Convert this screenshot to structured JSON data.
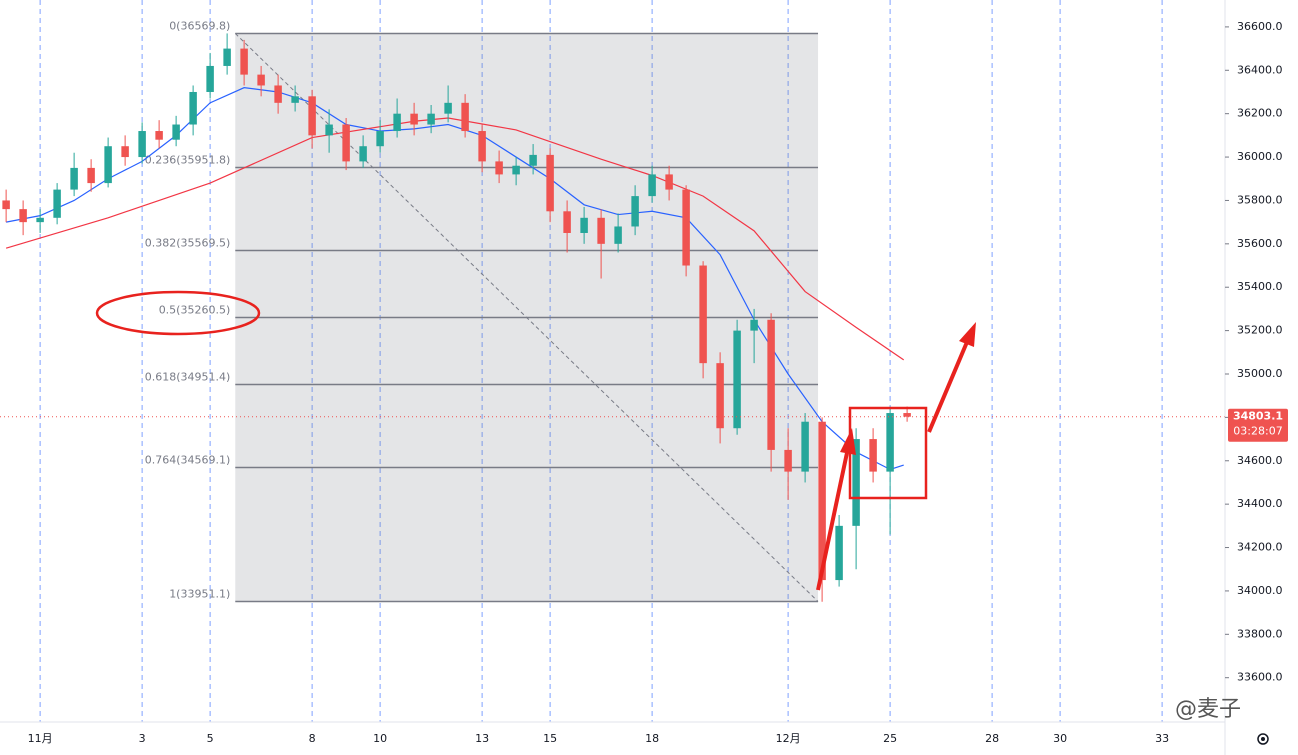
{
  "chart_data": {
    "type": "candlestick",
    "xlim": [
      -1.18,
      34.85
    ],
    "xticks": [
      {
        "value": 0,
        "label": "11月"
      },
      3,
      5,
      8,
      10,
      13,
      15,
      18,
      {
        "value": 22,
        "label": "12月"
      },
      25,
      28,
      30,
      33
    ],
    "ylim": [
      33405,
      36724
    ],
    "yticks": [
      {
        "value": 33600,
        "label": "33600.0"
      },
      {
        "value": 33800,
        "label": "33800.0"
      },
      {
        "value": 34000,
        "label": "34000.0"
      },
      {
        "value": 34200,
        "label": "34200.0"
      },
      {
        "value": 34400,
        "label": "34400.0"
      },
      {
        "value": 34600,
        "label": "34600.0"
      },
      {
        "value": 34800,
        "label": "34800.0"
      },
      {
        "value": 35000,
        "label": "35000.0"
      },
      {
        "value": 35200,
        "label": "35200.0"
      },
      {
        "value": 35400,
        "label": "35400.0"
      },
      {
        "value": 35600,
        "label": "35600.0"
      },
      {
        "value": 35800,
        "label": "35800.0"
      },
      {
        "value": 36000,
        "label": "36000.0"
      },
      {
        "value": 36200,
        "label": "36200.0"
      },
      {
        "value": 36400,
        "label": "36400.0"
      },
      {
        "value": 36600,
        "label": "36600.0"
      }
    ],
    "up_color": "#26a69a",
    "down_color": "#ef5350",
    "candles": {
      "x": [
        -1,
        -0.5,
        0,
        0.5,
        1,
        1.5,
        2,
        2.5,
        3,
        3.5,
        4,
        4.5,
        5,
        5.5,
        6,
        6.5,
        7,
        7.5,
        8,
        8.5,
        9,
        9.5,
        10,
        10.5,
        11,
        11.5,
        12,
        12.5,
        13,
        13.5,
        14,
        14.5,
        15,
        15.5,
        16,
        16.5,
        17,
        17.5,
        18,
        18.5,
        19,
        19.5,
        20,
        20.5,
        21,
        21.5,
        22,
        22.5,
        23,
        23.5,
        24,
        24.5,
        25,
        25.5
      ],
      "open": [
        35800,
        35760,
        35700,
        35720,
        35850,
        35950,
        35880,
        36050,
        36000,
        36120,
        36080,
        36150,
        36300,
        36420,
        36500,
        36380,
        36330,
        36250,
        36280,
        36100,
        36150,
        35980,
        36050,
        36120,
        36200,
        36150,
        36200,
        36250,
        36120,
        35980,
        35920,
        35960,
        36010,
        35750,
        35650,
        35720,
        35600,
        35680,
        35820,
        35920,
        35850,
        35500,
        35050,
        34750,
        35200,
        35250,
        34650,
        34550,
        34780,
        34050,
        34300,
        34700,
        34550,
        34820
      ],
      "high": [
        35850,
        35800,
        35760,
        35880,
        36020,
        35990,
        36090,
        36100,
        36160,
        36170,
        36190,
        36330,
        36480,
        36570,
        36540,
        36420,
        36380,
        36330,
        36310,
        36220,
        36180,
        36100,
        36170,
        36270,
        36250,
        36240,
        36330,
        36290,
        36150,
        36030,
        36000,
        36060,
        36040,
        35800,
        35770,
        35760,
        35740,
        35870,
        35960,
        35960,
        35870,
        35520,
        35100,
        35250,
        35300,
        35280,
        34750,
        34820,
        34800,
        34350,
        34750,
        34750,
        34850,
        34850
      ],
      "low": [
        35700,
        35640,
        35650,
        35690,
        35820,
        35840,
        35860,
        35960,
        35970,
        36040,
        36050,
        36100,
        36270,
        36380,
        36330,
        36280,
        36200,
        36210,
        36040,
        36020,
        35940,
        35950,
        36020,
        36090,
        36100,
        36110,
        36160,
        36090,
        35930,
        35880,
        35870,
        35920,
        35700,
        35560,
        35600,
        35440,
        35560,
        35640,
        35790,
        35800,
        35450,
        34980,
        34680,
        34720,
        35050,
        34550,
        34420,
        34500,
        33950,
        34020,
        34100,
        34500,
        34260,
        34780
      ],
      "close": [
        35760,
        35700,
        35720,
        35850,
        35950,
        35880,
        36050,
        36000,
        36120,
        36080,
        36150,
        36300,
        36420,
        36500,
        36380,
        36330,
        36250,
        36280,
        36100,
        36150,
        35980,
        36050,
        36120,
        36200,
        36150,
        36200,
        36250,
        36120,
        35980,
        35920,
        35960,
        36010,
        35750,
        35650,
        35720,
        35600,
        35680,
        35820,
        35920,
        35850,
        35500,
        35050,
        34750,
        35200,
        35250,
        34650,
        34550,
        34780,
        34050,
        34300,
        34700,
        34550,
        34820,
        34803.1
      ]
    },
    "lines": [
      {
        "color": "#2962ff",
        "x": [
          -1,
          0,
          1,
          2,
          3,
          4,
          5,
          6,
          7,
          8,
          9,
          10,
          11,
          12,
          13,
          14,
          15,
          16,
          17,
          18,
          19,
          20,
          21,
          22,
          23,
          24,
          25,
          25.4
        ],
        "values": [
          35700,
          35730,
          35800,
          35900,
          35980,
          36100,
          36250,
          36320,
          36300,
          36250,
          36150,
          36120,
          36130,
          36150,
          36100,
          36000,
          35900,
          35780,
          35735,
          35750,
          35720,
          35550,
          35250,
          35000,
          34780,
          34640,
          34560,
          34580
        ]
      },
      {
        "color": "#f23645",
        "x": [
          -1,
          2,
          5,
          8,
          11,
          12,
          14,
          16.5,
          18,
          19.5,
          21,
          22.5,
          24,
          25.4
        ],
        "values": [
          35580,
          35720,
          35880,
          36090,
          36165,
          36180,
          36125,
          35990,
          35915,
          35820,
          35660,
          35380,
          35215,
          35065
        ]
      }
    ],
    "fib": {
      "x": [
        5.74,
        22.88
      ],
      "levels": [
        {
          "value": 36569.8,
          "label": "0(36569.8)"
        },
        {
          "value": 35951.8,
          "label": "0.236(35951.8)"
        },
        {
          "value": 35569.5,
          "label": "0.382(35569.5)"
        },
        {
          "value": 35260.5,
          "label": "0.5(35260.5)"
        },
        {
          "value": 34951.4,
          "label": "0.618(34951.4)"
        },
        {
          "value": 34569.1,
          "label": "0.764(34569.1)"
        },
        {
          "value": 33951.1,
          "label": "1(33951.1)"
        }
      ]
    },
    "countdown": "03:28:07",
    "watermark": "@麦子"
  }
}
